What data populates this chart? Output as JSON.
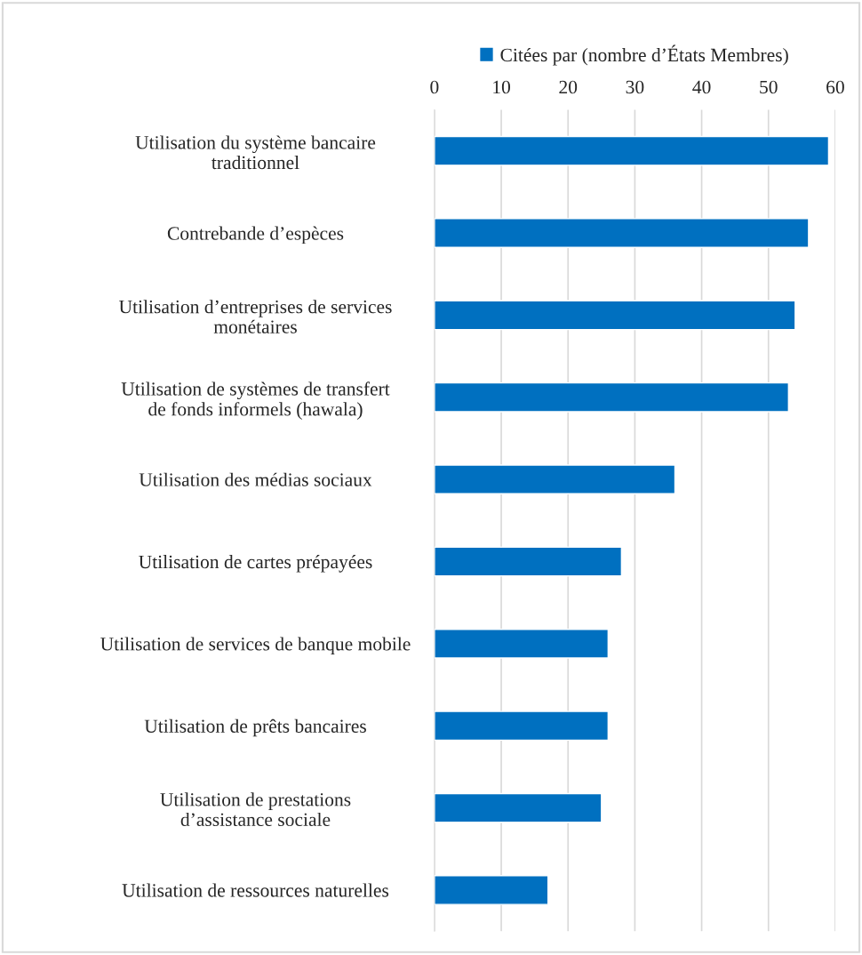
{
  "chart_data": {
    "type": "bar",
    "orientation": "horizontal",
    "categories": [
      "Utilisation du système bancaire\ntraditionnel",
      "Contrebande d’espèces",
      "Utilisation d’entreprises de services\nmonétaires",
      "Utilisation de systèmes de transfert\nde fonds informels (hawala)",
      "Utilisation des médias sociaux",
      "Utilisation de cartes prépayées",
      "Utilisation de services de banque mobile",
      "Utilisation de prêts bancaires",
      "Utilisation de prestations\nd’assistance sociale",
      "Utilisation de ressources naturelles"
    ],
    "series": [
      {
        "name": "Citées par (nombre d’États Membres)",
        "color": "#0070c0",
        "values": [
          59,
          56,
          54,
          53,
          36,
          28,
          26,
          26,
          25,
          17
        ]
      }
    ],
    "xlim": [
      0,
      60
    ],
    "xticks": [
      0,
      10,
      20,
      30,
      40,
      50,
      60
    ],
    "grid": "x",
    "legend": "top"
  }
}
